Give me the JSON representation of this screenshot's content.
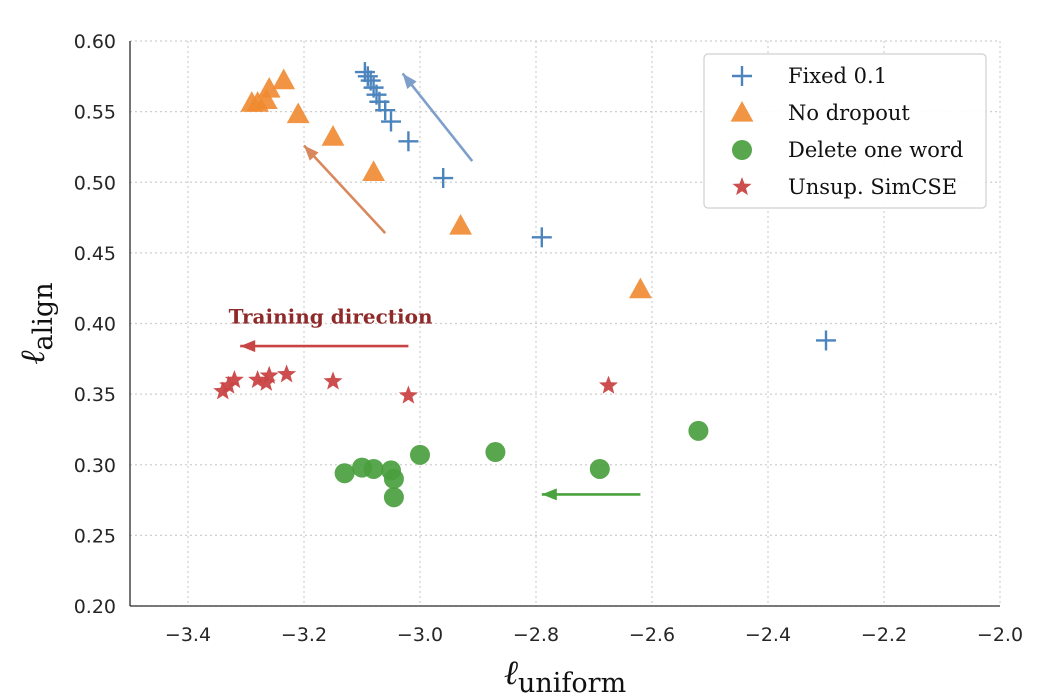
{
  "chart_data": {
    "type": "scatter",
    "title": "",
    "xlabel": "ℓ",
    "xlabel_sub": "uniform",
    "ylabel": "ℓ",
    "ylabel_sub": "align",
    "xlim": [
      -3.5,
      -2.0
    ],
    "ylim": [
      0.2,
      0.6
    ],
    "x_ticks": [
      -3.4,
      -3.2,
      -3.0,
      -2.8,
      -2.6,
      -2.4,
      -2.2,
      -2.0
    ],
    "x_tick_labels": [
      "−3.4",
      "−3.2",
      "−3.0",
      "−2.8",
      "−2.6",
      "−2.4",
      "−2.2",
      "−2.0"
    ],
    "y_ticks": [
      0.2,
      0.25,
      0.3,
      0.35,
      0.4,
      0.45,
      0.5,
      0.55,
      0.6
    ],
    "y_tick_labels": [
      "0.20",
      "0.25",
      "0.30",
      "0.35",
      "0.40",
      "0.45",
      "0.50",
      "0.55",
      "0.60"
    ],
    "grid": true,
    "legend_position": "top-right",
    "series": [
      {
        "name": "Fixed 0.1",
        "marker": "plus",
        "color": "#4c84bd",
        "points": [
          [
            -2.3,
            0.388
          ],
          [
            -2.79,
            0.461
          ],
          [
            -2.96,
            0.503
          ],
          [
            -3.02,
            0.529
          ],
          [
            -3.05,
            0.543
          ],
          [
            -3.06,
            0.551
          ],
          [
            -3.07,
            0.557
          ],
          [
            -3.075,
            0.562
          ],
          [
            -3.08,
            0.567
          ],
          [
            -3.085,
            0.572
          ],
          [
            -3.09,
            0.575
          ],
          [
            -3.095,
            0.578
          ]
        ]
      },
      {
        "name": "No dropout",
        "marker": "triangle",
        "color": "#f08a30",
        "points": [
          [
            -2.62,
            0.424
          ],
          [
            -2.93,
            0.469
          ],
          [
            -3.08,
            0.507
          ],
          [
            -3.15,
            0.532
          ],
          [
            -3.21,
            0.548
          ],
          [
            -3.235,
            0.572
          ],
          [
            -3.26,
            0.566
          ],
          [
            -3.265,
            0.558
          ],
          [
            -3.28,
            0.556
          ],
          [
            -3.29,
            0.556
          ]
        ]
      },
      {
        "name": "Delete one word",
        "marker": "circle",
        "color": "#4a9e3e",
        "points": [
          [
            -2.52,
            0.324
          ],
          [
            -2.69,
            0.297
          ],
          [
            -2.87,
            0.309
          ],
          [
            -3.0,
            0.307
          ],
          [
            -3.045,
            0.277
          ],
          [
            -3.045,
            0.29
          ],
          [
            -3.05,
            0.296
          ],
          [
            -3.08,
            0.297
          ],
          [
            -3.1,
            0.298
          ],
          [
            -3.13,
            0.294
          ]
        ]
      },
      {
        "name": "Unsup. SimCSE",
        "marker": "star",
        "color": "#c94545",
        "points": [
          [
            -2.675,
            0.356
          ],
          [
            -3.02,
            0.349
          ],
          [
            -3.15,
            0.359
          ],
          [
            -3.23,
            0.364
          ],
          [
            -3.26,
            0.363
          ],
          [
            -3.265,
            0.358
          ],
          [
            -3.28,
            0.36
          ],
          [
            -3.32,
            0.36
          ],
          [
            -3.33,
            0.356
          ],
          [
            -3.34,
            0.352
          ]
        ]
      }
    ],
    "annotations": [
      {
        "type": "arrow",
        "series": "Fixed 0.1",
        "color": "#7f9fcb",
        "from": [
          -2.91,
          0.515
        ],
        "to": [
          -3.03,
          0.577
        ]
      },
      {
        "type": "arrow",
        "series": "No dropout",
        "color": "#d9875c",
        "from": [
          -3.06,
          0.464
        ],
        "to": [
          -3.2,
          0.526
        ]
      },
      {
        "type": "arrow",
        "series": "Unsup. SimCSE",
        "color": "#c94545",
        "from": [
          -3.02,
          0.384
        ],
        "to": [
          -3.31,
          0.384
        ]
      },
      {
        "type": "arrow",
        "series": "Delete one word",
        "color": "#4aa33e",
        "from": [
          -2.62,
          0.279
        ],
        "to": [
          -2.79,
          0.279
        ]
      },
      {
        "type": "text",
        "text": "Training direction",
        "color": "#8e2a2a",
        "at": [
          -3.33,
          0.4
        ]
      }
    ]
  }
}
